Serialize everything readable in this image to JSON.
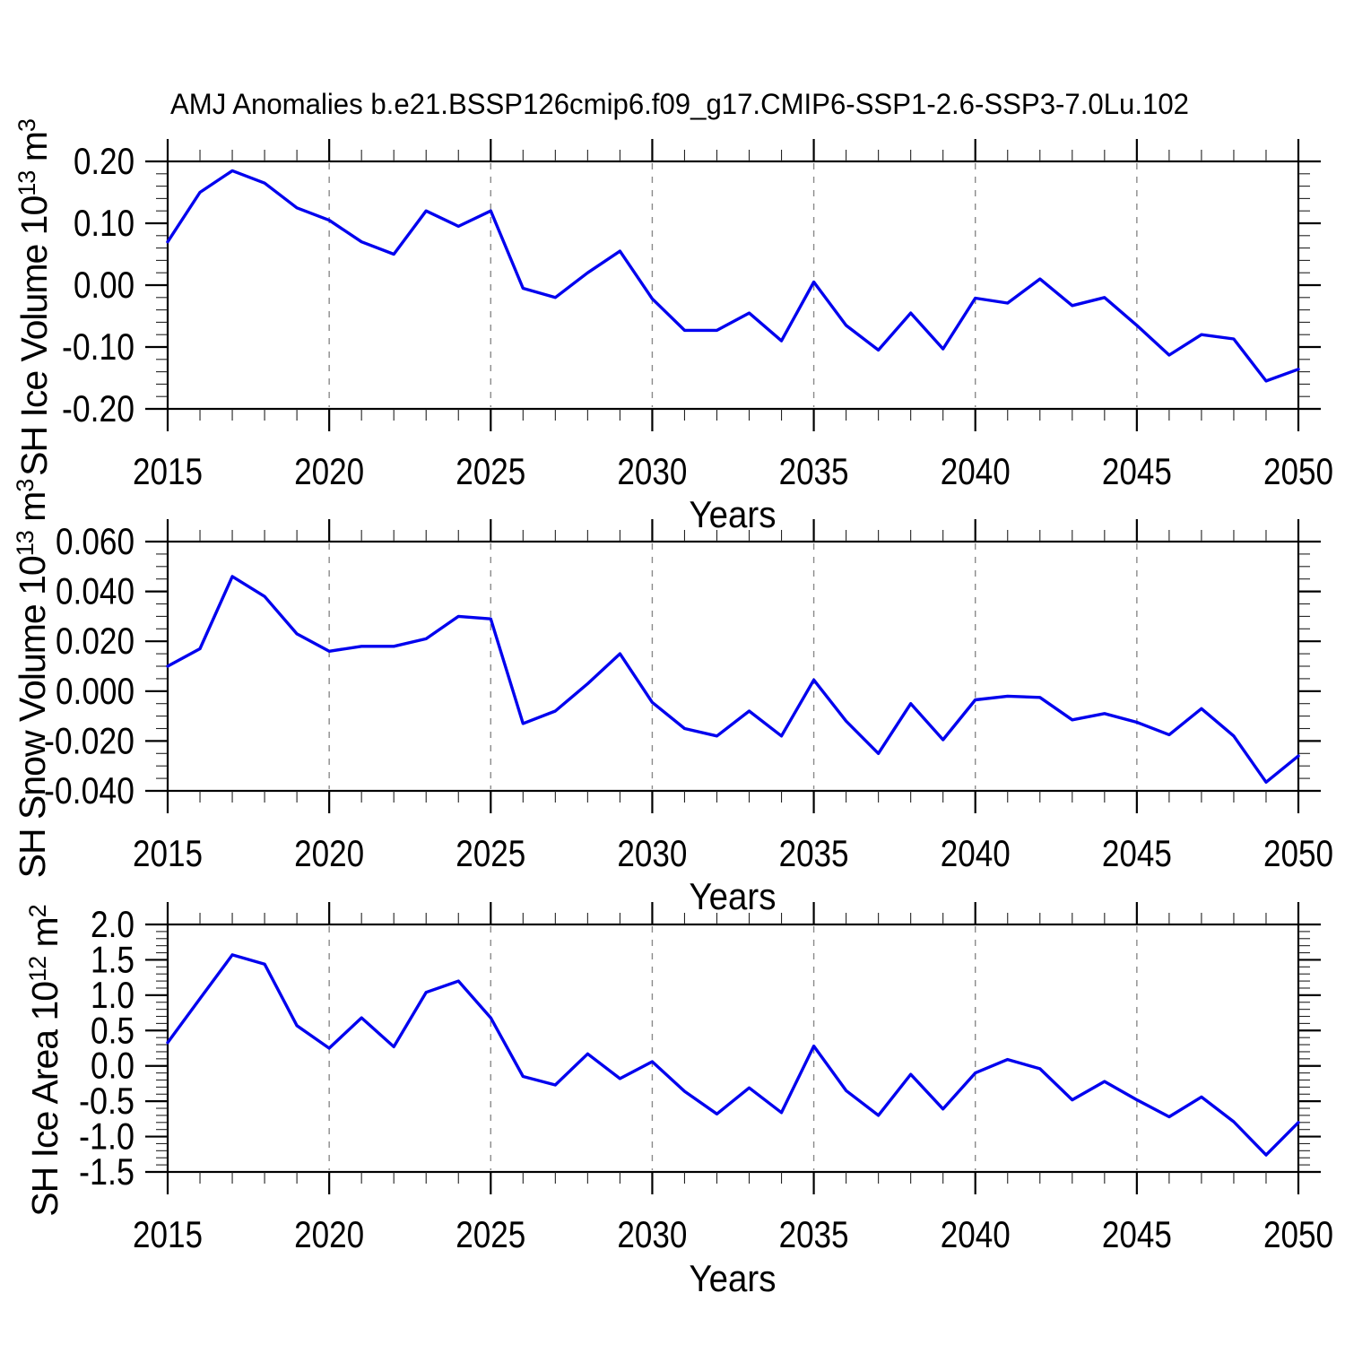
{
  "title": "AMJ Anomalies b.e21.BSSP126cmip6.f09_g17.CMIP6-SSP1-2.6-SSP3-7.0Lu.102",
  "x_axis": {
    "label": "Years",
    "range": [
      2015,
      2050
    ],
    "years": [
      2015,
      2016,
      2017,
      2018,
      2019,
      2020,
      2021,
      2022,
      2023,
      2024,
      2025,
      2026,
      2027,
      2028,
      2029,
      2030,
      2031,
      2032,
      2033,
      2034,
      2035,
      2036,
      2037,
      2038,
      2039,
      2040,
      2041,
      2042,
      2043,
      2044,
      2045,
      2046,
      2047,
      2048,
      2049,
      2050
    ],
    "major_tick_years": [
      2015,
      2020,
      2025,
      2030,
      2035,
      2040,
      2045,
      2050
    ],
    "tick_labels": [
      "2015",
      "2020",
      "2025",
      "2030",
      "2035",
      "2040",
      "2045",
      "2050"
    ],
    "minor_step_years": 1,
    "gridline_years": [
      2020,
      2025,
      2030,
      2035,
      2040,
      2045
    ]
  },
  "colors": {
    "line": "#0000ee",
    "grid": "#8a8a8a",
    "axis": "#000000",
    "minor_tick": "#222222",
    "background": "#ffffff"
  },
  "chart_data": [
    {
      "type": "line",
      "name": "sh-ice-volume",
      "ylabel": "SH Ice Volume 10^13 m^3",
      "ylabel_parts": [
        "SH Ice Volume 10",
        "13",
        " m",
        "3"
      ],
      "ylim": [
        -0.2,
        0.2
      ],
      "y_major_ticks": [
        0.2,
        0.1,
        0.0,
        -0.1,
        -0.2
      ],
      "y_tick_labels": [
        "0.20",
        "0.10",
        "0.00",
        "-0.10",
        "-0.20"
      ],
      "y_minor_step": 0.02,
      "legend": "none",
      "grid": "vertical-dashed",
      "values": [
        0.07,
        0.15,
        0.185,
        0.165,
        0.125,
        0.105,
        0.07,
        0.05,
        0.12,
        0.095,
        0.12,
        -0.005,
        -0.02,
        0.02,
        0.055,
        -0.022,
        -0.073,
        -0.073,
        -0.045,
        -0.09,
        0.005,
        -0.065,
        -0.105,
        -0.045,
        -0.103,
        -0.021,
        -0.029,
        0.01,
        -0.033,
        -0.02,
        -0.065,
        -0.113,
        -0.08,
        -0.087,
        -0.155,
        -0.136
      ]
    },
    {
      "type": "line",
      "name": "sh-snow-volume",
      "ylabel": "SH Snow Volume 10^13 m^3",
      "ylabel_parts": [
        "SH Snow Volume 10",
        "13",
        " m",
        "3"
      ],
      "ylim": [
        -0.04,
        0.06
      ],
      "y_major_ticks": [
        0.06,
        0.04,
        0.02,
        0.0,
        -0.02,
        -0.04
      ],
      "y_tick_labels": [
        "0.060",
        "0.040",
        "0.020",
        "0.000",
        "-0.020",
        "-0.040"
      ],
      "y_minor_step": 0.005,
      "legend": "none",
      "grid": "vertical-dashed",
      "values": [
        0.01,
        0.017,
        0.046,
        0.038,
        0.023,
        0.016,
        0.018,
        0.018,
        0.021,
        0.03,
        0.029,
        -0.013,
        -0.008,
        0.003,
        0.015,
        -0.0045,
        -0.015,
        -0.018,
        -0.008,
        -0.018,
        0.0045,
        -0.012,
        -0.025,
        -0.005,
        -0.0195,
        -0.0035,
        -0.002,
        -0.0025,
        -0.0115,
        -0.009,
        -0.0125,
        -0.0175,
        -0.007,
        -0.018,
        -0.0365,
        -0.026
      ]
    },
    {
      "type": "line",
      "name": "sh-ice-area",
      "ylabel": "SH Ice Area 10^12 m^2",
      "ylabel_parts": [
        "SH Ice Area 10",
        "12",
        " m",
        "2"
      ],
      "ylim": [
        -1.5,
        2.0
      ],
      "y_major_ticks": [
        2.0,
        1.5,
        1.0,
        0.5,
        0.0,
        -0.5,
        -1.0,
        -1.5
      ],
      "y_tick_labels": [
        "2.0",
        "1.5",
        "1.0",
        "0.5",
        "0.0",
        "-0.5",
        "-1.0",
        "-1.5"
      ],
      "y_minor_step": 0.1,
      "legend": "none",
      "grid": "vertical-dashed",
      "values": [
        0.33,
        0.95,
        1.57,
        1.44,
        0.57,
        0.25,
        0.68,
        0.27,
        1.04,
        1.2,
        0.68,
        -0.15,
        -0.27,
        0.17,
        -0.18,
        0.06,
        -0.36,
        -0.68,
        -0.31,
        -0.66,
        0.28,
        -0.35,
        -0.7,
        -0.12,
        -0.61,
        -0.1,
        0.09,
        -0.04,
        -0.48,
        -0.22,
        -0.48,
        -0.72,
        -0.44,
        -0.79,
        -1.26,
        -0.8
      ]
    }
  ]
}
